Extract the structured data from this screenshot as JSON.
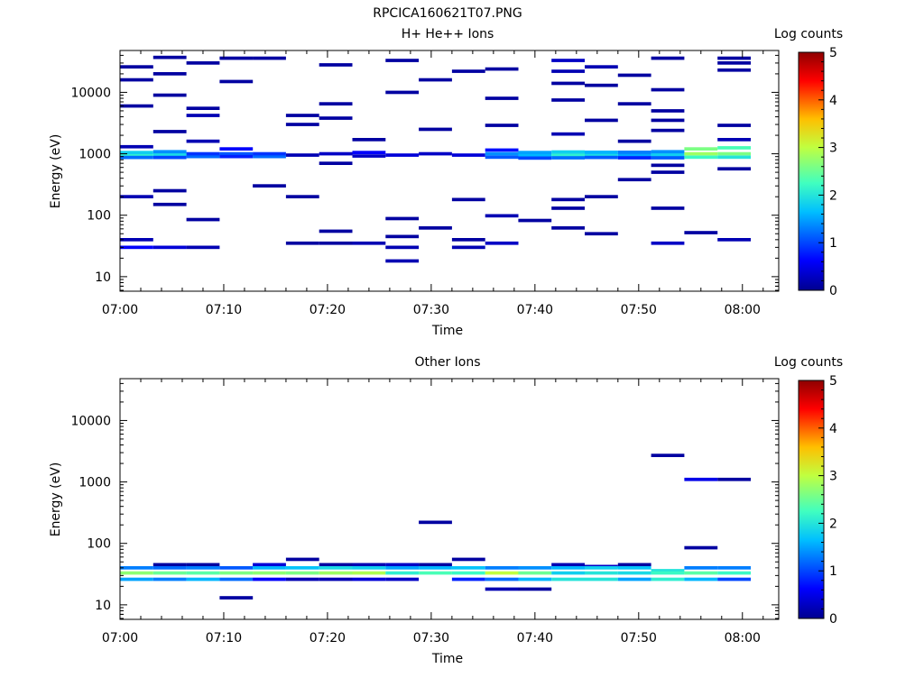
{
  "figure_title": "RPCICA160621T07.PNG",
  "palette": {
    "colorbar_stops": [
      "#00008f",
      "#0000ff",
      "#00bfff",
      "#40ffc0",
      "#c0ff40",
      "#ffbf00",
      "#ff0000",
      "#8f0000"
    ]
  },
  "chart_data": [
    {
      "type": "heatmap",
      "title": "H+ He++ Ions",
      "xlabel": "Time",
      "ylabel": "Energy (eV)",
      "x_ticks": [
        "07:00",
        "07:10",
        "07:20",
        "07:30",
        "07:40",
        "07:50",
        "08:00"
      ],
      "x_tick_minutes": [
        0,
        10,
        20,
        30,
        40,
        50,
        60
      ],
      "xlim_minutes": [
        0,
        63.5
      ],
      "y_scale": "log",
      "ylim": [
        5.8,
        48000
      ],
      "y_ticks": [
        10,
        100,
        1000,
        10000
      ],
      "y_tick_labels": [
        "10",
        "100",
        "1000",
        "10000"
      ],
      "colorbar": {
        "label": "Log counts",
        "range": [
          0,
          5
        ],
        "ticks": [
          "0",
          "1",
          "2",
          "3",
          "4",
          "5"
        ]
      },
      "time_bin_minutes": 3.2,
      "cells": [
        [
          0,
          950,
          2.1
        ],
        [
          0,
          1050,
          1.8
        ],
        [
          0,
          870,
          1.2
        ],
        [
          0,
          30,
          0.6
        ],
        [
          0,
          40,
          0.2
        ],
        [
          0,
          200,
          0.2
        ],
        [
          0,
          1300,
          0.2
        ],
        [
          0,
          6000,
          0.1
        ],
        [
          0,
          16000,
          0.1
        ],
        [
          0,
          26000,
          0.1
        ],
        [
          1,
          960,
          1.9
        ],
        [
          1,
          1080,
          1.4
        ],
        [
          1,
          870,
          1.0
        ],
        [
          1,
          30,
          0.4
        ],
        [
          1,
          150,
          0.1
        ],
        [
          1,
          250,
          0.1
        ],
        [
          1,
          2300,
          0.1
        ],
        [
          1,
          9000,
          0.1
        ],
        [
          1,
          20000,
          0.1
        ],
        [
          1,
          37000,
          0.1
        ],
        [
          2,
          900,
          1.2
        ],
        [
          2,
          1000,
          0.9
        ],
        [
          2,
          1600,
          0.2
        ],
        [
          2,
          4200,
          0.2
        ],
        [
          2,
          30,
          0.2
        ],
        [
          2,
          85,
          0.1
        ],
        [
          2,
          5500,
          0.1
        ],
        [
          2,
          30000,
          0.1
        ],
        [
          3,
          1000,
          1.1
        ],
        [
          3,
          900,
          0.8
        ],
        [
          3,
          1200,
          0.6
        ],
        [
          3,
          15000,
          0.1
        ],
        [
          3,
          36000,
          0.1
        ],
        [
          4,
          900,
          1.2
        ],
        [
          4,
          1000,
          0.9
        ],
        [
          4,
          300,
          0.1
        ],
        [
          4,
          36000,
          0.1
        ],
        [
          5,
          950,
          0.2
        ],
        [
          5,
          35,
          0.1
        ],
        [
          5,
          200,
          0.1
        ],
        [
          5,
          3000,
          0.1
        ],
        [
          5,
          4200,
          0.1
        ],
        [
          6,
          1000,
          0.3
        ],
        [
          6,
          35,
          0.1
        ],
        [
          6,
          55,
          0.1
        ],
        [
          6,
          700,
          0.1
        ],
        [
          6,
          3800,
          0.1
        ],
        [
          6,
          6500,
          0.1
        ],
        [
          6,
          28000,
          0.1
        ],
        [
          7,
          1050,
          0.6
        ],
        [
          7,
          920,
          0.3
        ],
        [
          7,
          35,
          0.2
        ],
        [
          7,
          1700,
          0.1
        ],
        [
          8,
          950,
          0.4
        ],
        [
          8,
          18,
          0.2
        ],
        [
          8,
          30,
          0.2
        ],
        [
          8,
          45,
          0.1
        ],
        [
          8,
          88,
          0.1
        ],
        [
          8,
          10000,
          0.1
        ],
        [
          8,
          33000,
          0.1
        ],
        [
          9,
          1000,
          0.3
        ],
        [
          9,
          62,
          0.1
        ],
        [
          9,
          2500,
          0.1
        ],
        [
          9,
          16000,
          0.1
        ],
        [
          10,
          950,
          0.4
        ],
        [
          10,
          30,
          0.2
        ],
        [
          10,
          40,
          0.1
        ],
        [
          10,
          180,
          0.1
        ],
        [
          10,
          22000,
          0.1
        ],
        [
          11,
          1000,
          1.4
        ],
        [
          11,
          880,
          1.1
        ],
        [
          11,
          1150,
          0.7
        ],
        [
          11,
          35,
          0.3
        ],
        [
          11,
          98,
          0.2
        ],
        [
          11,
          2900,
          0.1
        ],
        [
          11,
          8000,
          0.1
        ],
        [
          11,
          24000,
          0.1
        ],
        [
          12,
          950,
          1.6
        ],
        [
          12,
          1050,
          1.5
        ],
        [
          12,
          850,
          1.0
        ],
        [
          12,
          82,
          0.1
        ],
        [
          13,
          960,
          2.1
        ],
        [
          13,
          1070,
          1.8
        ],
        [
          13,
          860,
          1.2
        ],
        [
          13,
          2100,
          0.2
        ],
        [
          13,
          33000,
          0.3
        ],
        [
          13,
          22000,
          0.2
        ],
        [
          13,
          62,
          0.1
        ],
        [
          13,
          130,
          0.1
        ],
        [
          13,
          180,
          0.1
        ],
        [
          13,
          7500,
          0.1
        ],
        [
          13,
          14000,
          0.1
        ],
        [
          14,
          950,
          1.9
        ],
        [
          14,
          1060,
          1.6
        ],
        [
          14,
          870,
          1.1
        ],
        [
          14,
          26000,
          0.2
        ],
        [
          14,
          50,
          0.1
        ],
        [
          14,
          200,
          0.1
        ],
        [
          14,
          3500,
          0.1
        ],
        [
          14,
          13000,
          0.1
        ],
        [
          15,
          960,
          1.5
        ],
        [
          15,
          1060,
          1.3
        ],
        [
          15,
          860,
          0.8
        ],
        [
          15,
          380,
          0.1
        ],
        [
          15,
          1600,
          0.1
        ],
        [
          15,
          6500,
          0.1
        ],
        [
          15,
          19000,
          0.1
        ],
        [
          16,
          960,
          1.8
        ],
        [
          16,
          1080,
          1.4
        ],
        [
          16,
          860,
          1.1
        ],
        [
          16,
          35,
          0.3
        ],
        [
          16,
          130,
          0.1
        ],
        [
          16,
          500,
          0.1
        ],
        [
          16,
          650,
          0.1
        ],
        [
          16,
          2400,
          0.1
        ],
        [
          16,
          3500,
          0.1
        ],
        [
          16,
          5000,
          0.1
        ],
        [
          16,
          11000,
          0.1
        ],
        [
          16,
          36000,
          0.1
        ],
        [
          17,
          1000,
          2.8
        ],
        [
          17,
          1200,
          2.6
        ],
        [
          17,
          880,
          2.2
        ],
        [
          17,
          52,
          0.1
        ],
        [
          18,
          1000,
          2.6
        ],
        [
          18,
          1250,
          2.3
        ],
        [
          18,
          880,
          2.0
        ],
        [
          18,
          40,
          0.2
        ],
        [
          18,
          570,
          0.1
        ],
        [
          18,
          1700,
          0.2
        ],
        [
          18,
          2900,
          0.1
        ],
        [
          18,
          23000,
          0.1
        ],
        [
          18,
          30000,
          0.1
        ],
        [
          18,
          36000,
          0.1
        ]
      ]
    },
    {
      "type": "heatmap",
      "title": "Other Ions",
      "xlabel": "Time",
      "ylabel": "Energy (eV)",
      "x_ticks": [
        "07:00",
        "07:10",
        "07:20",
        "07:30",
        "07:40",
        "07:50",
        "08:00"
      ],
      "x_tick_minutes": [
        0,
        10,
        20,
        30,
        40,
        50,
        60
      ],
      "xlim_minutes": [
        0,
        63.5
      ],
      "y_scale": "log",
      "ylim": [
        5.8,
        48000
      ],
      "y_ticks": [
        10,
        100,
        1000,
        10000
      ],
      "y_tick_labels": [
        "10",
        "100",
        "1000",
        "10000"
      ],
      "colorbar": {
        "label": "Log counts",
        "range": [
          0,
          5
        ],
        "ticks": [
          "0",
          "1",
          "2",
          "3",
          "4",
          "5"
        ]
      },
      "time_bin_minutes": 3.2,
      "cells": [
        [
          0,
          40,
          1.3
        ],
        [
          0,
          33,
          2.7
        ],
        [
          0,
          26,
          1.5
        ],
        [
          1,
          45,
          0.1
        ],
        [
          1,
          40,
          1.2
        ],
        [
          1,
          33,
          2.5
        ],
        [
          1,
          26,
          1.3
        ],
        [
          2,
          45,
          0.1
        ],
        [
          2,
          40,
          1.3
        ],
        [
          2,
          33,
          2.4
        ],
        [
          2,
          26,
          1.6
        ],
        [
          3,
          40,
          1.1
        ],
        [
          3,
          33,
          2.6
        ],
        [
          3,
          26,
          1.2
        ],
        [
          3,
          13,
          0.1
        ],
        [
          4,
          45,
          0.4
        ],
        [
          4,
          40,
          1.6
        ],
        [
          4,
          33,
          2.7
        ],
        [
          4,
          26,
          0.6
        ],
        [
          5,
          55,
          0.1
        ],
        [
          5,
          40,
          1.7
        ],
        [
          5,
          33,
          2.6
        ],
        [
          5,
          26,
          0.2
        ],
        [
          6,
          45,
          0.1
        ],
        [
          6,
          40,
          1.9
        ],
        [
          6,
          33,
          2.8
        ],
        [
          6,
          26,
          0.2
        ],
        [
          7,
          45,
          0.2
        ],
        [
          7,
          40,
          1.8
        ],
        [
          7,
          33,
          2.9
        ],
        [
          7,
          26,
          0.4
        ],
        [
          8,
          45,
          0.3
        ],
        [
          8,
          40,
          1.5
        ],
        [
          8,
          33,
          2.1
        ],
        [
          8,
          26,
          0.3
        ],
        [
          9,
          220,
          0.1
        ],
        [
          9,
          45,
          0.1
        ],
        [
          9,
          40,
          1.6
        ],
        [
          9,
          33,
          2.3
        ],
        [
          10,
          55,
          0.1
        ],
        [
          10,
          40,
          1.7
        ],
        [
          10,
          33,
          2.2
        ],
        [
          10,
          26,
          0.8
        ],
        [
          11,
          40,
          1.3
        ],
        [
          11,
          33,
          3.0
        ],
        [
          11,
          26,
          1.2
        ],
        [
          11,
          18,
          0.2
        ],
        [
          12,
          40,
          1.4
        ],
        [
          12,
          33,
          2.5
        ],
        [
          12,
          26,
          1.6
        ],
        [
          12,
          18,
          0.1
        ],
        [
          13,
          45,
          0.2
        ],
        [
          13,
          40,
          1.6
        ],
        [
          13,
          33,
          1.8
        ],
        [
          13,
          26,
          2.0
        ],
        [
          14,
          42,
          0.3
        ],
        [
          14,
          40,
          1.8
        ],
        [
          14,
          33,
          2.0
        ],
        [
          14,
          26,
          2.0
        ],
        [
          15,
          45,
          0.1
        ],
        [
          15,
          40,
          1.7
        ],
        [
          15,
          33,
          1.9
        ],
        [
          15,
          26,
          1.5
        ],
        [
          16,
          2700,
          0.1
        ],
        [
          16,
          36,
          2.0
        ],
        [
          16,
          33,
          2.2
        ],
        [
          16,
          26,
          2.1
        ],
        [
          17,
          1100,
          0.5
        ],
        [
          17,
          85,
          0.1
        ],
        [
          17,
          40,
          1.3
        ],
        [
          17,
          33,
          2.4
        ],
        [
          17,
          26,
          1.6
        ],
        [
          18,
          1100,
          0.1
        ],
        [
          18,
          40,
          1.3
        ],
        [
          18,
          33,
          2.2
        ],
        [
          18,
          26,
          1.0
        ]
      ]
    }
  ]
}
